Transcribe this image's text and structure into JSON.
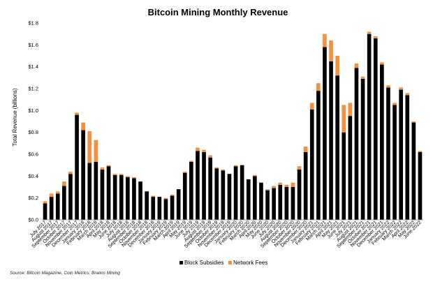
{
  "chart_data": {
    "type": "bar",
    "stacked": true,
    "title": "Bitcoin Mining Monthly Revenue",
    "ylabel": "Total Revenue (billions)",
    "xlabel": "",
    "ylim": [
      0,
      1.8
    ],
    "yticks": [
      "$0.0",
      "$0.2",
      "$0.4",
      "$0.6",
      "$0.8",
      "$1.0",
      "$1.2",
      "$1.4",
      "$1.6",
      "$1.8"
    ],
    "grid": false,
    "legend_position": "bottom",
    "categories": [
      "July 2017",
      "August 2017",
      "September 2017",
      "October 2017",
      "November 2017",
      "December 2017",
      "January 2018",
      "February 2018",
      "March 2018",
      "April 2018",
      "May 2018",
      "June 2018",
      "July 2018",
      "August 2018",
      "September 2018",
      "October 2018",
      "November 2018",
      "December 2018",
      "January 2019",
      "February 2019",
      "March 2019",
      "April 2019",
      "May 2019",
      "June 2019",
      "July 2019",
      "August 2019",
      "September 2019",
      "October 2019",
      "November 2019",
      "December 2019",
      "January 2020",
      "February 2020",
      "March 2020",
      "April 2020",
      "May 2020",
      "June 2020",
      "July 2020",
      "August 2020",
      "September 2020",
      "October 2020",
      "November 2020",
      "December 2020",
      "January 2021",
      "February 2021",
      "March 2021",
      "April 2021",
      "May 2021",
      "June 2021",
      "July 2021",
      "August 2021",
      "September 2021",
      "October 2021",
      "November 2021",
      "December 2021",
      "January 2022",
      "February 2022",
      "March 2022",
      "April 2022",
      "May 2022",
      "June 2022"
    ],
    "series": [
      {
        "name": "Block Subsidies",
        "color": "#000000",
        "values": [
          0.15,
          0.21,
          0.24,
          0.31,
          0.42,
          0.96,
          0.82,
          0.52,
          0.53,
          0.46,
          0.49,
          0.41,
          0.41,
          0.39,
          0.38,
          0.35,
          0.26,
          0.21,
          0.21,
          0.19,
          0.22,
          0.28,
          0.43,
          0.53,
          0.63,
          0.62,
          0.57,
          0.47,
          0.45,
          0.42,
          0.49,
          0.5,
          0.37,
          0.4,
          0.34,
          0.27,
          0.29,
          0.32,
          0.3,
          0.3,
          0.46,
          0.62,
          1.01,
          1.18,
          1.58,
          1.45,
          1.32,
          0.8,
          0.95,
          1.39,
          1.29,
          1.7,
          1.66,
          1.42,
          1.21,
          1.05,
          1.19,
          1.14,
          0.89,
          0.62
        ]
      },
      {
        "name": "Network Fees",
        "color": "#f5913e",
        "values": [
          0.02,
          0.03,
          0.02,
          0.04,
          0.02,
          0.02,
          0.07,
          0.29,
          0.2,
          0.02,
          0.01,
          0.01,
          0.01,
          0.01,
          0.01,
          0.0,
          0.0,
          0.01,
          0.0,
          0.01,
          0.01,
          0.0,
          0.01,
          0.01,
          0.03,
          0.02,
          0.02,
          0.01,
          0.01,
          0.0,
          0.01,
          0.0,
          0.0,
          0.01,
          0.0,
          0.01,
          0.02,
          0.02,
          0.02,
          0.04,
          0.03,
          0.05,
          0.06,
          0.07,
          0.12,
          0.19,
          0.18,
          0.25,
          0.12,
          0.04,
          0.02,
          0.02,
          0.02,
          0.02,
          0.02,
          0.02,
          0.02,
          0.02,
          0.01,
          0.01
        ]
      }
    ]
  },
  "source": "Source: Bitcoin Magazine, Coin Metrics, Braiins Mining"
}
